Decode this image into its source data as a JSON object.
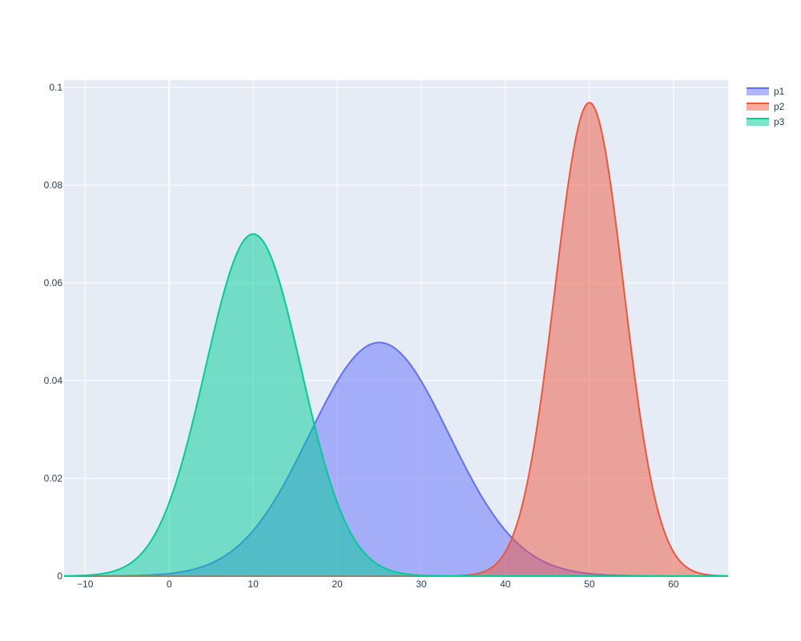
{
  "chart_data": {
    "type": "area",
    "title": "",
    "xlabel": "",
    "ylabel": "",
    "xlim": [
      -12.5,
      66.5
    ],
    "ylim": [
      0,
      0.1015
    ],
    "x_ticks": [
      -10,
      0,
      10,
      20,
      30,
      40,
      50,
      60
    ],
    "x_tick_labels": [
      "−10",
      "0",
      "10",
      "20",
      "30",
      "40",
      "50",
      "60"
    ],
    "y_ticks": [
      0,
      0.02,
      0.04,
      0.06,
      0.08,
      0.1
    ],
    "y_tick_labels": [
      "0",
      "0.02",
      "0.04",
      "0.06",
      "0.08",
      "0.1"
    ],
    "grid": true,
    "legend_position": "top-right",
    "series": [
      {
        "name": "p1",
        "color": "#636efa",
        "mean": 25,
        "sd": 8.3,
        "peak": 0.0478,
        "x_range": [
          -12.5,
          66.5
        ]
      },
      {
        "name": "p2",
        "color": "#ef553b",
        "mean": 50,
        "sd": 4.1,
        "peak": 0.0969,
        "x_range": [
          -12.5,
          66.5
        ]
      },
      {
        "name": "p3",
        "color": "#00cc96",
        "mean": 10,
        "sd": 5.7,
        "peak": 0.07,
        "x_range": [
          -12.5,
          66.5
        ]
      }
    ]
  }
}
